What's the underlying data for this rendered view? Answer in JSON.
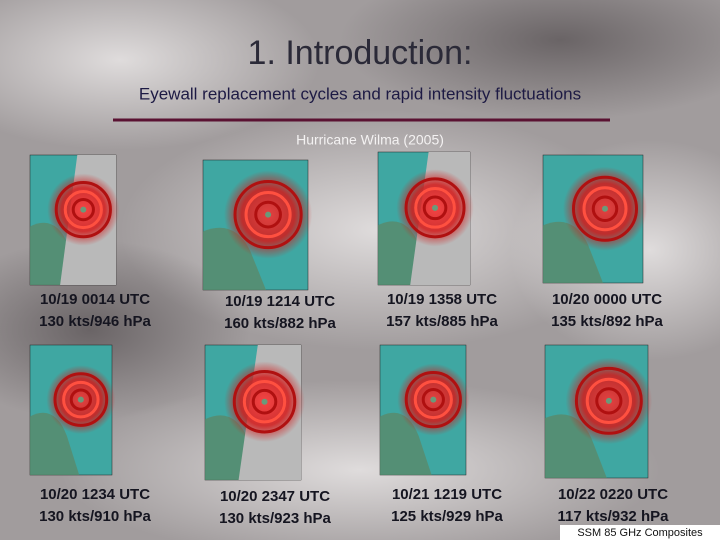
{
  "title": "1. Introduction:",
  "subtitle": "Eyewall replacement cycles and rapid intensity fluctuations",
  "section_title": "Hurricane Wilma (2005)",
  "panels": [
    {
      "time": "10/19 0014 UTC",
      "stats": "130 kts/946 hPa"
    },
    {
      "time": "10/19 1214 UTC",
      "stats": "160 kts/882 hPa"
    },
    {
      "time": "10/19 1358 UTC",
      "stats": "157 kts/885 hPa"
    },
    {
      "time": "10/20 0000 UTC",
      "stats": "135 kts/892 hPa"
    },
    {
      "time": "10/20 1234 UTC",
      "stats": "130 kts/910 hPa"
    },
    {
      "time": "10/20 2347 UTC",
      "stats": "130 kts/923 hPa"
    },
    {
      "time": "10/21 1219 UTC",
      "stats": "125 kts/929 hPa"
    },
    {
      "time": "10/22 0220 UTC",
      "stats": "117 kts/932 hPa"
    }
  ],
  "footer": "SSM 85 GHz Composites"
}
